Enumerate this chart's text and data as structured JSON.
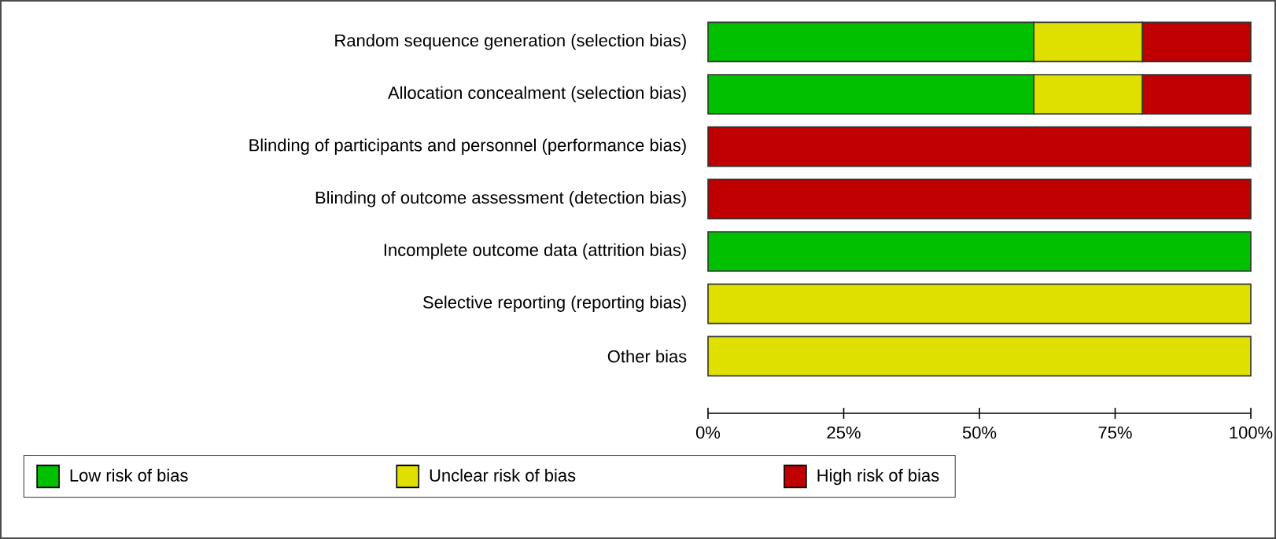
{
  "chart_data": {
    "type": "bar",
    "orientation": "horizontal",
    "stacked": true,
    "categories": [
      "Random sequence generation (selection bias)",
      "Allocation concealment (selection bias)",
      "Blinding of participants and personnel (performance bias)",
      "Blinding of outcome assessment (detection bias)",
      "Incomplete outcome data (attrition bias)",
      "Selective reporting (reporting bias)",
      "Other bias"
    ],
    "series": [
      {
        "name": "Low risk of bias",
        "color": "#00c000",
        "values": [
          60,
          60,
          0,
          0,
          100,
          0,
          0
        ]
      },
      {
        "name": "Unclear risk of bias",
        "color": "#e0e000",
        "values": [
          20,
          20,
          0,
          0,
          0,
          100,
          100
        ]
      },
      {
        "name": "High risk of bias",
        "color": "#c00000",
        "values": [
          20,
          20,
          100,
          100,
          0,
          0,
          0
        ]
      }
    ],
    "xlim": [
      0,
      100
    ],
    "xticks": [
      {
        "value": 0,
        "label": "0%"
      },
      {
        "value": 25,
        "label": "25%"
      },
      {
        "value": 50,
        "label": "50%"
      },
      {
        "value": 75,
        "label": "75%"
      },
      {
        "value": 100,
        "label": "100%"
      }
    ],
    "grid": false,
    "legend": "bottom"
  }
}
